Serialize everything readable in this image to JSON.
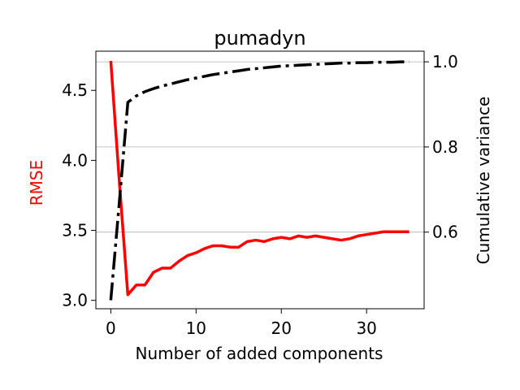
{
  "chart_data": {
    "type": "line",
    "title": "pumadyn",
    "xlabel": "Number of added components",
    "ylabel_left": "RMSE",
    "ylabel_right": "Cumulative variance",
    "xlim": [
      -1.75,
      36.75
    ],
    "ylim_left": [
      2.94,
      4.78
    ],
    "ylim_right": [
      0.42,
      1.025
    ],
    "x_ticks": [
      0,
      10,
      20,
      30
    ],
    "y_ticks_left": [
      3.0,
      3.5,
      4.0,
      4.5
    ],
    "y_tick_labels_left": [
      "3.0",
      "3.5",
      "4.0",
      "4.5"
    ],
    "y_ticks_right": [
      0.6,
      0.8,
      1.0
    ],
    "y_tick_labels_right": [
      "0.6",
      "0.8",
      "1.0"
    ],
    "grid": "horizontal at right-axis ticks",
    "series": [
      {
        "name": "RMSE",
        "axis": "left",
        "color": "#ff0000",
        "linestyle": "solid",
        "x": [
          0,
          1,
          2,
          3,
          4,
          5,
          6,
          7,
          8,
          9,
          10,
          11,
          12,
          13,
          14,
          15,
          16,
          17,
          18,
          19,
          20,
          21,
          22,
          23,
          24,
          25,
          26,
          27,
          28,
          29,
          30,
          31,
          32,
          33,
          34,
          35
        ],
        "values": [
          4.71,
          3.85,
          3.04,
          3.11,
          3.11,
          3.2,
          3.23,
          3.23,
          3.28,
          3.32,
          3.34,
          3.37,
          3.39,
          3.39,
          3.38,
          3.38,
          3.42,
          3.43,
          3.42,
          3.44,
          3.45,
          3.44,
          3.46,
          3.45,
          3.46,
          3.45,
          3.44,
          3.43,
          3.44,
          3.46,
          3.47,
          3.48,
          3.49,
          3.49,
          3.49,
          3.49
        ]
      },
      {
        "name": "Cumulative variance",
        "axis": "right",
        "color": "#000000",
        "linestyle": "dashdot",
        "x": [
          0,
          1,
          2,
          3,
          4,
          5,
          6,
          7,
          8,
          9,
          10,
          11,
          12,
          13,
          14,
          15,
          16,
          17,
          18,
          19,
          20,
          21,
          22,
          23,
          24,
          25,
          26,
          27,
          28,
          29,
          30,
          31,
          32,
          33,
          34,
          35
        ],
        "values": [
          0.44,
          0.67,
          0.905,
          0.92,
          0.93,
          0.937,
          0.943,
          0.948,
          0.953,
          0.958,
          0.962,
          0.966,
          0.97,
          0.973,
          0.976,
          0.979,
          0.982,
          0.984,
          0.986,
          0.988,
          0.99,
          0.991,
          0.992,
          0.993,
          0.994,
          0.995,
          0.996,
          0.997,
          0.997,
          0.998,
          0.998,
          0.999,
          0.999,
          0.999,
          1.0,
          1.0
        ]
      }
    ]
  }
}
